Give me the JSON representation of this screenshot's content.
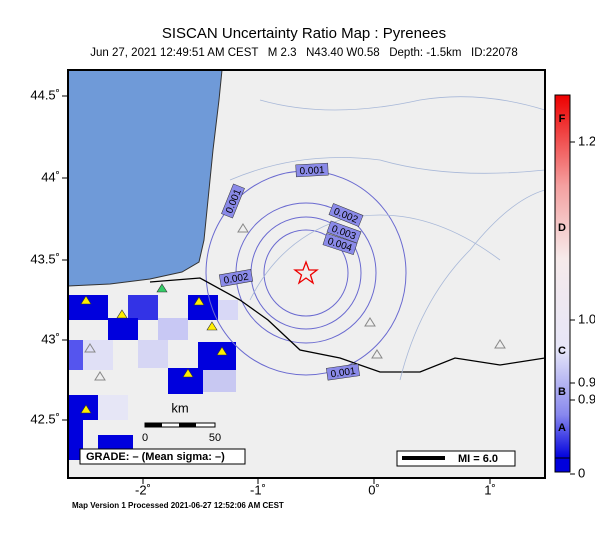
{
  "header": {
    "title": "SISCAN Uncertainty Ratio Map : Pyrenees",
    "subtitle": "Jun 27, 2021 12:49:51 AM CEST   M 2.3   N43.40 W0.58   Depth: -1.5km   ID:22078"
  },
  "map": {
    "lat_labels": [
      "44.5˚",
      "44˚",
      "43.5˚",
      "43˚",
      "42.5˚"
    ],
    "lon_labels": [
      "-2˚",
      "-1˚",
      "0˚",
      "1˚"
    ],
    "contour_labels": [
      "0.001",
      "0.001",
      "0.002",
      "0.003",
      "0.004",
      "0.002",
      "0.001"
    ],
    "scale": {
      "unit": "km",
      "ticks": [
        "0",
        "50"
      ]
    },
    "grade_legend": "GRADE: – (Mean sigma: –)",
    "mi_legend": "MI = 6.0"
  },
  "colorbar": {
    "grades": [
      "F",
      "D",
      "C",
      "B",
      "A"
    ],
    "ticks": [
      "1.2",
      "1.0",
      "0.9",
      "0.9",
      "0"
    ]
  },
  "footer": "Map Version 1 Processed 2021-06-27 12:52:06 AM CEST"
}
